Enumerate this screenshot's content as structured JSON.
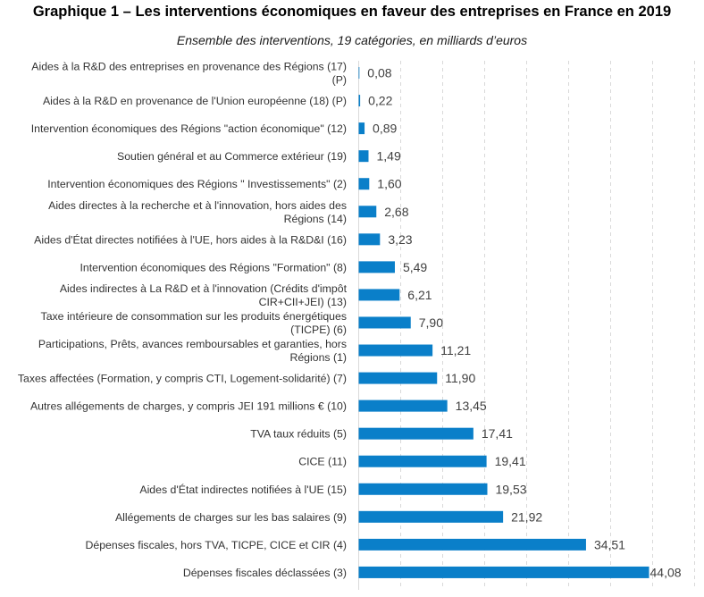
{
  "chart_data": {
    "type": "bar",
    "orientation": "horizontal",
    "title": "Graphique 1 – Les interventions économiques en faveur des entreprises en France en 2019",
    "subtitle": "Ensemble des interventions, 19 catégories, en milliards d’euros",
    "xlim": [
      0,
      44.08
    ],
    "grid": true,
    "bar_color": "#0a7fc9",
    "categories": [
      [
        "Aides à la R&D des entreprises en provenance des Régions (17)",
        "(P)"
      ],
      [
        "Aides à la R&D en provenance de l'Union européenne (18) (P)"
      ],
      [
        "Intervention économiques des Régions \"action économique\"  (12)"
      ],
      [
        "Soutien général et au Commerce extérieur (19)"
      ],
      [
        "Intervention économiques des Régions \" Investissements\" (2)"
      ],
      [
        "Aides directes à la recherche et à l'innovation, hors aides des",
        "Régions (14)"
      ],
      [
        "Aides d'État directes notifiées à l'UE, hors aides à la R&D&I (16)"
      ],
      [
        "Intervention économiques des Régions \"Formation\" (8)"
      ],
      [
        "Aides indirectes à La R&D et à l'innovation (Crédits d'impôt",
        "CIR+CII+JEI) (13)"
      ],
      [
        "Taxe intérieure de consommation sur les produits énergétiques",
        "(TICPE)  (6)"
      ],
      [
        "Participations, Prêts, avances remboursables et garanties, hors",
        "Régions (1)"
      ],
      [
        "Taxes affectées (Formation, y compris CTI, Logement-solidarité) (7)"
      ],
      [
        "Autres allégements de charges, y compris JEI 191 millions € (10)"
      ],
      [
        "TVA taux réduits (5)"
      ],
      [
        "CICE (11)"
      ],
      [
        "Aides d'État indirectes notifiées à l'UE (15)"
      ],
      [
        "Allégements de charges sur les bas salaires (9)"
      ],
      [
        "Dépenses fiscales, hors TVA, TICPE, CICE et CIR (4)"
      ],
      [
        "Dépenses fiscales déclassées (3)"
      ]
    ],
    "values": [
      0.08,
      0.22,
      0.89,
      1.49,
      1.6,
      2.68,
      3.23,
      5.49,
      6.21,
      7.9,
      11.21,
      11.9,
      13.45,
      17.41,
      19.41,
      19.53,
      21.92,
      34.51,
      44.08
    ],
    "value_labels": [
      "0,08",
      "0,22",
      "0,89",
      "1,49",
      "1,60",
      "2,68",
      "3,23",
      "5,49",
      "6,21",
      "7,90",
      "11,21",
      "11,90",
      "13,45",
      "17,41",
      "19,41",
      "19,53",
      "21,92",
      "34,51",
      "44,08"
    ]
  }
}
